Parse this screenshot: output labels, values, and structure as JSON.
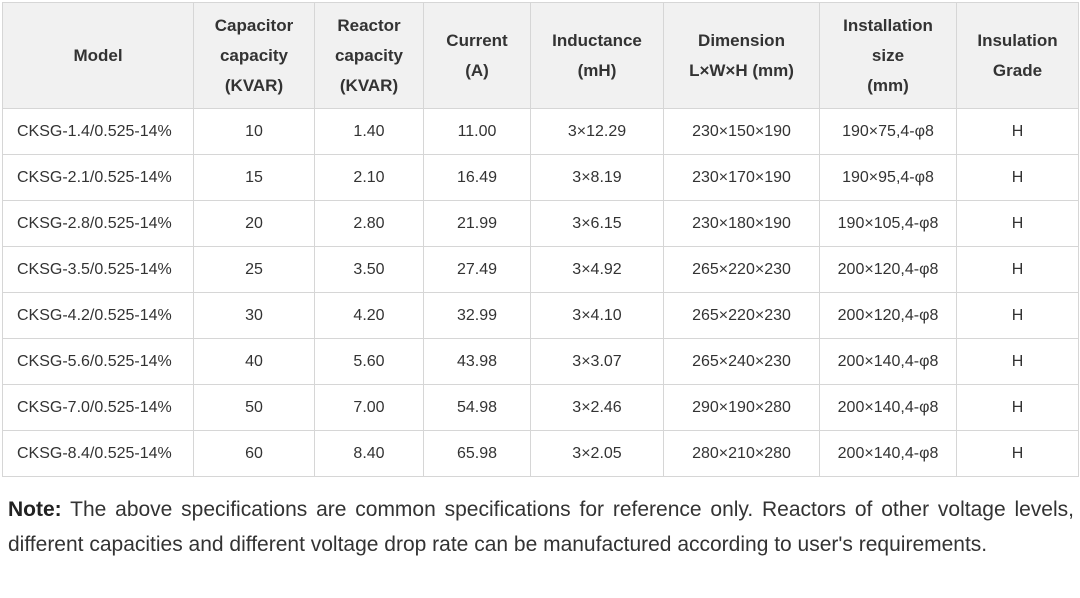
{
  "table": {
    "headers": [
      {
        "key": "model",
        "lines": [
          "Model"
        ]
      },
      {
        "key": "capacitor-capacity",
        "lines": [
          "Capacitor",
          "capacity",
          "(KVAR)"
        ]
      },
      {
        "key": "reactor-capacity",
        "lines": [
          "Reactor",
          "capacity",
          "(KVAR)"
        ]
      },
      {
        "key": "current",
        "lines": [
          "Current",
          "(A)"
        ]
      },
      {
        "key": "inductance",
        "lines": [
          "Inductance",
          "(mH)"
        ]
      },
      {
        "key": "dimension",
        "lines": [
          "Dimension",
          "L×W×H (mm)"
        ]
      },
      {
        "key": "installation-size",
        "lines": [
          "Installation",
          "size",
          "(mm)"
        ]
      },
      {
        "key": "insulation-grade",
        "lines": [
          "Insulation",
          "Grade"
        ]
      }
    ],
    "rows": [
      [
        "CKSG-1.4/0.525-14%",
        "10",
        "1.40",
        "11.00",
        "3×12.29",
        "230×150×190",
        "190×75,4-φ8",
        "H"
      ],
      [
        "CKSG-2.1/0.525-14%",
        "15",
        "2.10",
        "16.49",
        "3×8.19",
        "230×170×190",
        "190×95,4-φ8",
        "H"
      ],
      [
        "CKSG-2.8/0.525-14%",
        "20",
        "2.80",
        "21.99",
        "3×6.15",
        "230×180×190",
        "190×105,4-φ8",
        "H"
      ],
      [
        "CKSG-3.5/0.525-14%",
        "25",
        "3.50",
        "27.49",
        "3×4.92",
        "265×220×230",
        "200×120,4-φ8",
        "H"
      ],
      [
        "CKSG-4.2/0.525-14%",
        "30",
        "4.20",
        "32.99",
        "3×4.10",
        "265×220×230",
        "200×120,4-φ8",
        "H"
      ],
      [
        "CKSG-5.6/0.525-14%",
        "40",
        "5.60",
        "43.98",
        "3×3.07",
        "265×240×230",
        "200×140,4-φ8",
        "H"
      ],
      [
        "CKSG-7.0/0.525-14%",
        "50",
        "7.00",
        "54.98",
        "3×2.46",
        "290×190×280",
        "200×140,4-φ8",
        "H"
      ],
      [
        "CKSG-8.4/0.525-14%",
        "60",
        "8.40",
        "65.98",
        "3×2.05",
        "280×210×280",
        "200×140,4-φ8",
        "H"
      ]
    ]
  },
  "note": {
    "label": "Note:",
    "text": " The above specifications are common specifications for reference only. Reactors of other voltage levels, different capacities and different voltage drop rate can be manufactured according to user's requirements."
  }
}
